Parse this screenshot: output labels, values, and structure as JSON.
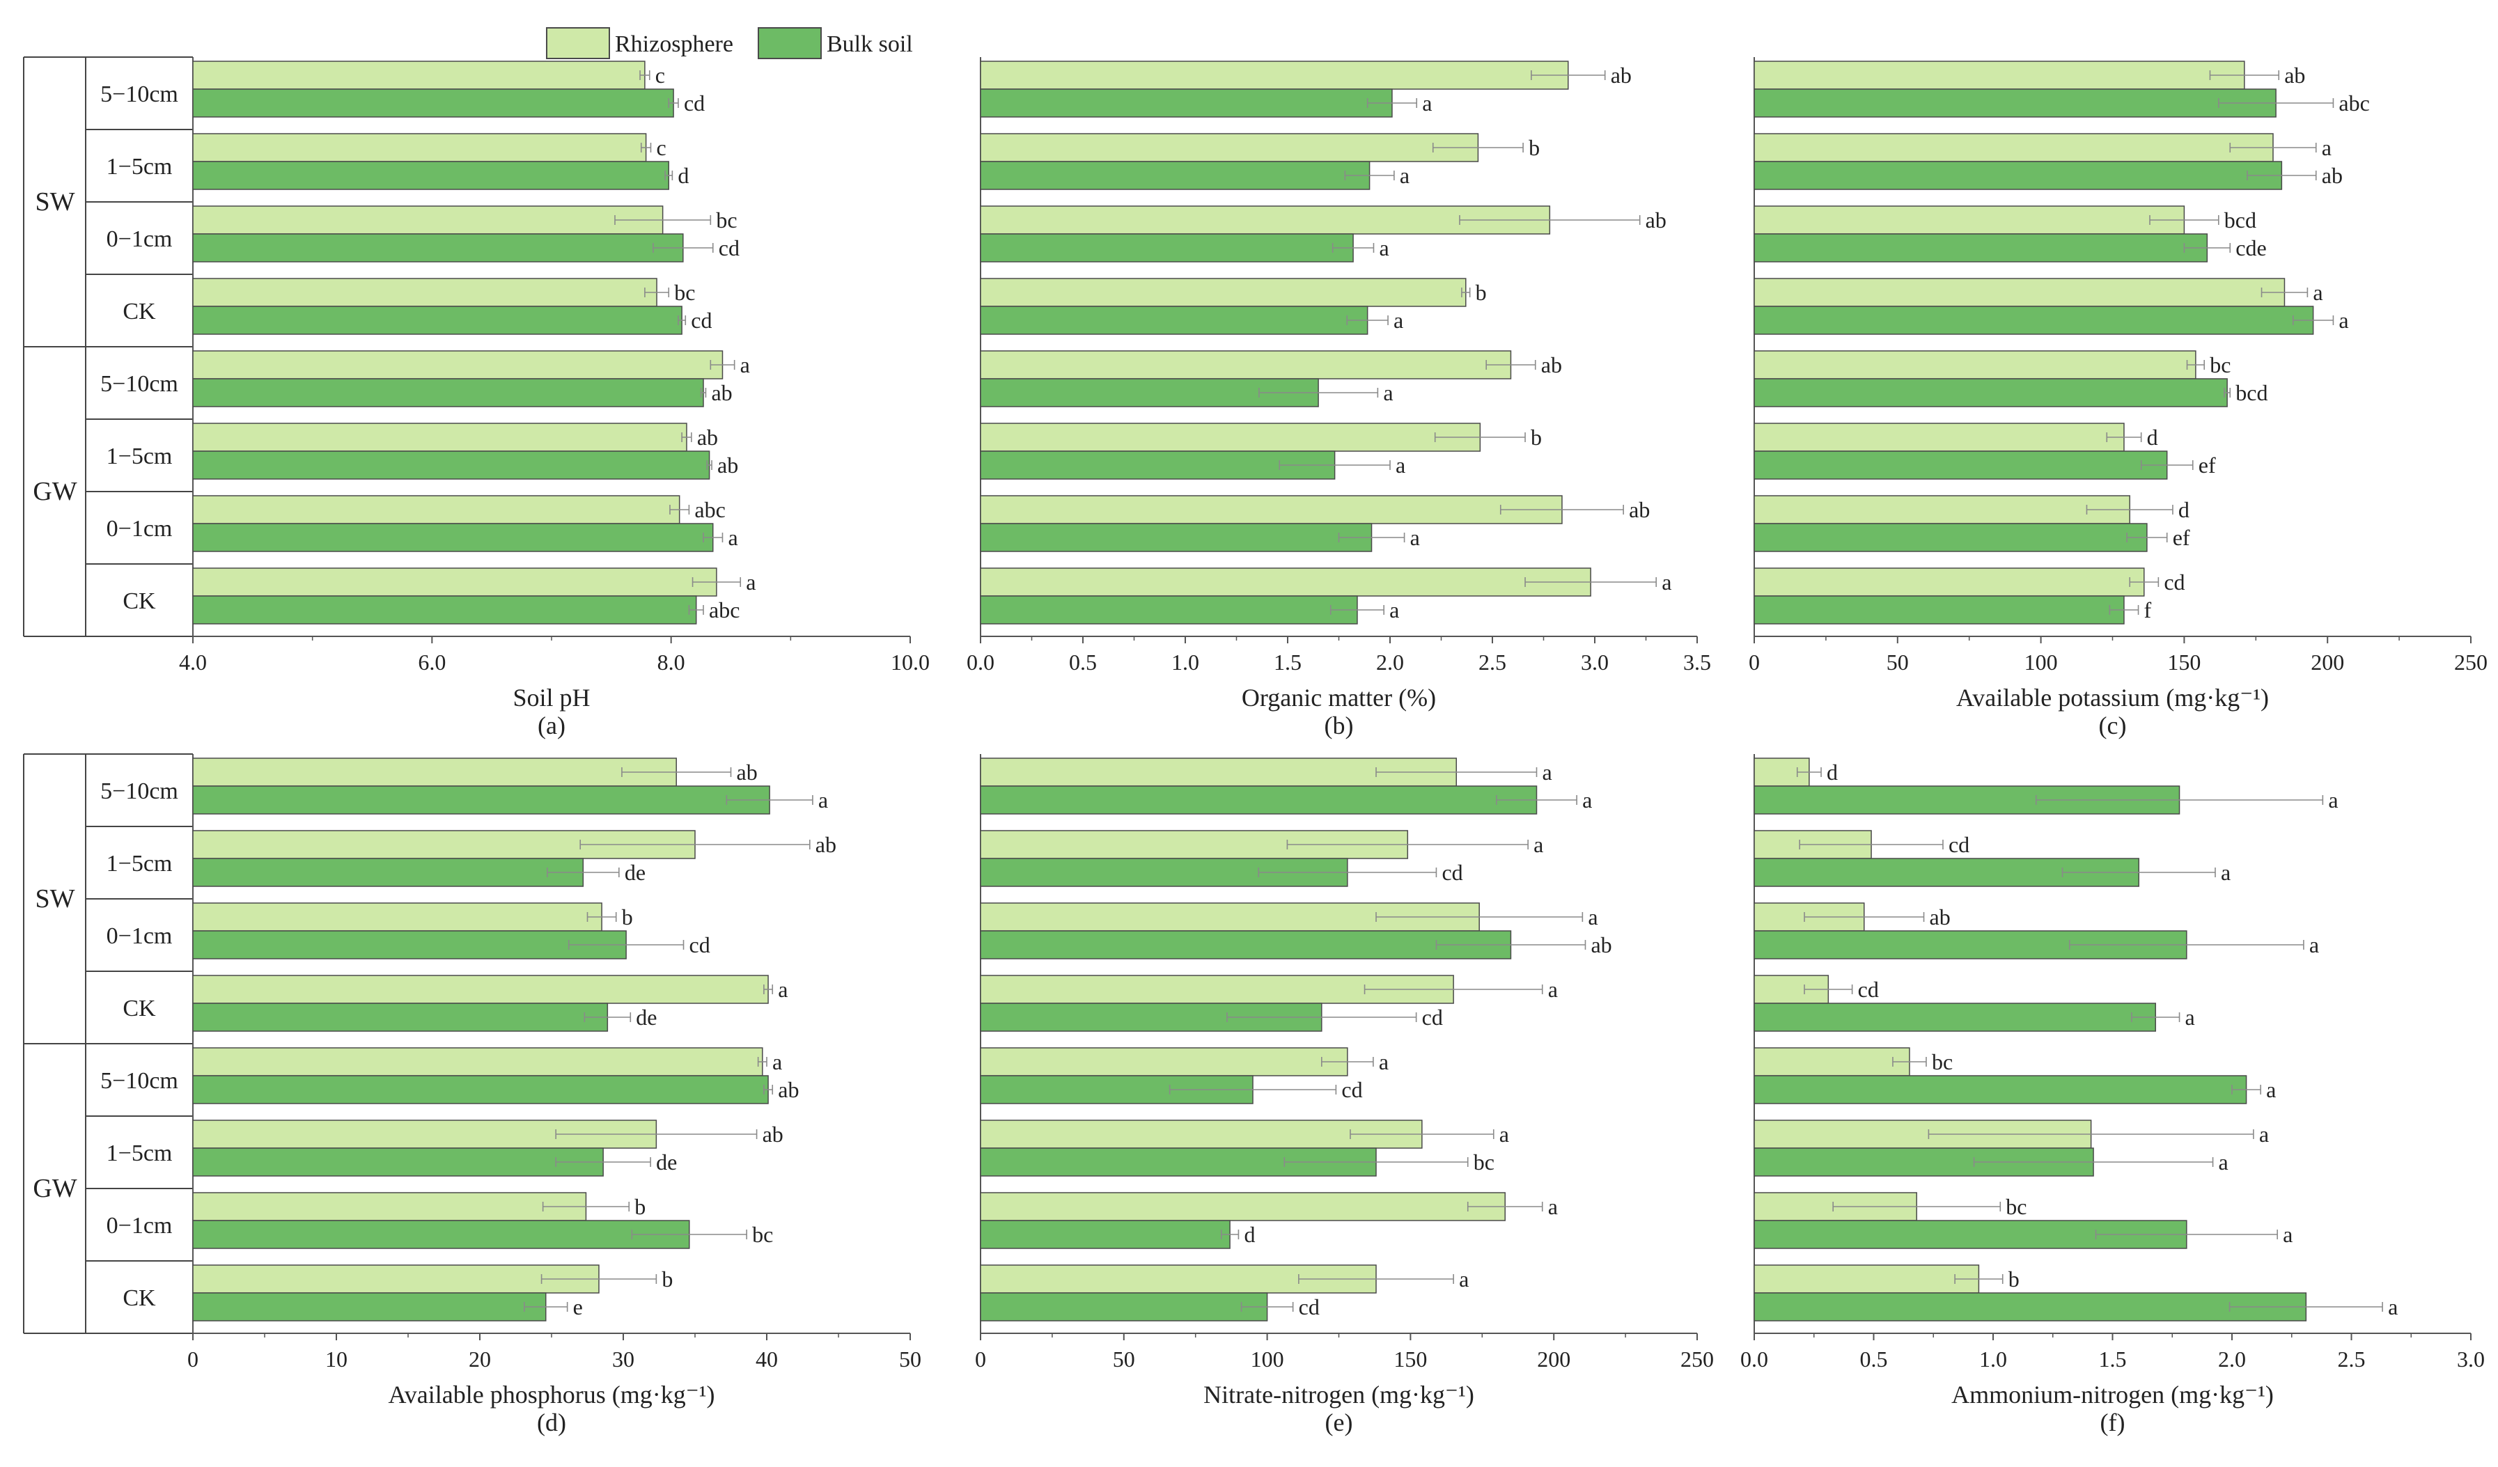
{
  "legend": {
    "rhizosphere": "Rhizosphere",
    "bulk": "Bulk soil"
  },
  "groups": [
    {
      "label": "SW",
      "depths": [
        "5−10cm",
        "1−5cm",
        "0−1cm",
        "CK"
      ]
    },
    {
      "label": "GW",
      "depths": [
        "5−10cm",
        "1−5cm",
        "0−1cm",
        "CK"
      ]
    }
  ],
  "colors": {
    "rhizosphere": "#cfe9a8",
    "bulk": "#6dbb65",
    "bar_edge": "#4a4a4a",
    "axis": "#555555",
    "error": "#8a8a8a"
  },
  "chart_data": [
    {
      "panel": "(a)",
      "type": "bar",
      "orientation": "horizontal",
      "xlabel": "Soil pH",
      "xlim": [
        4,
        10
      ],
      "ticks": [
        4,
        6,
        8,
        10
      ],
      "tick_labels": [
        "4.0",
        "6.0",
        "8.0",
        "10.0"
      ],
      "series": [
        {
          "name": "Rhizosphere",
          "values": [
            7.78,
            7.79,
            7.93,
            7.88,
            8.43,
            8.13,
            8.07,
            8.38
          ],
          "errors": [
            0.04,
            0.04,
            0.4,
            0.1,
            0.1,
            0.04,
            0.08,
            0.2
          ],
          "letters": [
            "c",
            "c",
            "bc",
            "bc",
            "a",
            "ab",
            "abc",
            "a"
          ]
        },
        {
          "name": "Bulk soil",
          "values": [
            8.02,
            7.98,
            8.1,
            8.09,
            8.27,
            8.32,
            8.35,
            8.21
          ],
          "errors": [
            0.04,
            0.03,
            0.25,
            0.03,
            0.02,
            0.02,
            0.08,
            0.06
          ],
          "letters": [
            "cd",
            "d",
            "cd",
            "cd",
            "ab",
            "ab",
            "a",
            "abc"
          ]
        }
      ]
    },
    {
      "panel": "(b)",
      "type": "bar",
      "orientation": "horizontal",
      "xlabel": "Organic matter (%)",
      "xlim": [
        0,
        3.5
      ],
      "ticks": [
        0,
        0.5,
        1,
        1.5,
        2,
        2.5,
        3,
        3.5
      ],
      "tick_labels": [
        "0.0",
        "0.5",
        "1.0",
        "1.5",
        "2.0",
        "2.5",
        "3.0",
        "3.5"
      ],
      "series": [
        {
          "name": "Rhizosphere",
          "values": [
            2.87,
            2.43,
            2.78,
            2.37,
            2.59,
            2.44,
            2.84,
            2.98
          ],
          "errors": [
            0.18,
            0.22,
            0.44,
            0.02,
            0.12,
            0.22,
            0.3,
            0.32
          ],
          "letters": [
            "ab",
            "b",
            "ab",
            "b",
            "ab",
            "b",
            "ab",
            "a"
          ]
        },
        {
          "name": "Bulk soil",
          "values": [
            2.01,
            1.9,
            1.82,
            1.89,
            1.65,
            1.73,
            1.91,
            1.84
          ],
          "errors": [
            0.12,
            0.12,
            0.1,
            0.1,
            0.29,
            0.27,
            0.16,
            0.13
          ],
          "letters": [
            "a",
            "a",
            "a",
            "a",
            "a",
            "a",
            "a",
            "a"
          ]
        }
      ]
    },
    {
      "panel": "(c)",
      "type": "bar",
      "orientation": "horizontal",
      "xlabel": "Available potassium (mg·kg⁻¹)",
      "xlim": [
        0,
        250
      ],
      "ticks": [
        0,
        50,
        100,
        150,
        200,
        250
      ],
      "tick_labels": [
        "0",
        "50",
        "100",
        "150",
        "200",
        "250"
      ],
      "series": [
        {
          "name": "Rhizosphere",
          "values": [
            171,
            181,
            150,
            185,
            154,
            129,
            131,
            136
          ],
          "errors": [
            12,
            15,
            12,
            8,
            3,
            6,
            15,
            5
          ],
          "letters": [
            "ab",
            "a",
            "bcd",
            "a",
            "bc",
            "d",
            "d",
            "cd"
          ]
        },
        {
          "name": "Bulk soil",
          "values": [
            182,
            184,
            158,
            195,
            165,
            144,
            137,
            129
          ],
          "errors": [
            20,
            12,
            8,
            7,
            1,
            9,
            7,
            5
          ],
          "letters": [
            "abc",
            "ab",
            "cde",
            "a",
            "bcd",
            "ef",
            "ef",
            "f"
          ]
        }
      ]
    },
    {
      "panel": "(d)",
      "type": "bar",
      "orientation": "horizontal",
      "xlabel": "Available phosphorus (mg·kg⁻¹)",
      "xlim": [
        0,
        50
      ],
      "ticks": [
        0,
        10,
        20,
        30,
        40,
        50
      ],
      "tick_labels": [
        "0",
        "10",
        "20",
        "30",
        "40",
        "50"
      ],
      "series": [
        {
          "name": "Rhizosphere",
          "values": [
            33.7,
            35,
            28.5,
            40.1,
            39.7,
            32.3,
            27.4,
            28.3
          ],
          "errors": [
            3.8,
            8,
            1,
            0.3,
            0.3,
            7,
            3,
            4
          ],
          "letters": [
            "ab",
            "ab",
            "b",
            "a",
            "a",
            "ab",
            "b",
            "b"
          ]
        },
        {
          "name": "Bulk soil",
          "values": [
            40.2,
            27.2,
            30.2,
            28.9,
            40.1,
            28.6,
            34.6,
            24.6
          ],
          "errors": [
            3,
            2.5,
            4,
            1.6,
            0.3,
            3.3,
            4,
            1.5
          ],
          "letters": [
            "a",
            "de",
            "cd",
            "de",
            "ab",
            "de",
            "bc",
            "e"
          ]
        }
      ]
    },
    {
      "panel": "(e)",
      "type": "bar",
      "orientation": "horizontal",
      "xlabel": "Nitrate-nitrogen (mg·kg⁻¹)",
      "xlim": [
        0,
        250
      ],
      "ticks": [
        0,
        50,
        100,
        150,
        200,
        250
      ],
      "tick_labels": [
        "0",
        "50",
        "100",
        "150",
        "200",
        "250"
      ],
      "series": [
        {
          "name": "Rhizosphere",
          "values": [
            166,
            149,
            174,
            165,
            128,
            154,
            183,
            138
          ],
          "errors": [
            28,
            42,
            36,
            31,
            9,
            25,
            13,
            27
          ],
          "letters": [
            "a",
            "a",
            "a",
            "a",
            "a",
            "a",
            "a",
            "a"
          ]
        },
        {
          "name": "Bulk soil",
          "values": [
            194,
            128,
            185,
            119,
            95,
            138,
            87,
            100
          ],
          "errors": [
            14,
            31,
            26,
            33,
            29,
            32,
            3,
            9
          ],
          "letters": [
            "a",
            "cd",
            "ab",
            "cd",
            "cd",
            "bc",
            "d",
            "cd"
          ]
        }
      ]
    },
    {
      "panel": "(f)",
      "type": "bar",
      "orientation": "horizontal",
      "xlabel": "Ammonium-nitrogen (mg·kg⁻¹)",
      "xlim": [
        0,
        3
      ],
      "ticks": [
        0,
        0.5,
        1,
        1.5,
        2,
        2.5,
        3
      ],
      "tick_labels": [
        "0.0",
        "0.5",
        "1.0",
        "1.5",
        "2.0",
        "2.5",
        "3.0"
      ],
      "series": [
        {
          "name": "Rhizosphere",
          "values": [
            0.23,
            0.49,
            0.46,
            0.31,
            0.65,
            1.41,
            0.68,
            0.94
          ],
          "errors": [
            0.05,
            0.3,
            0.25,
            0.1,
            0.07,
            0.68,
            0.35,
            0.1
          ],
          "letters": [
            "d",
            "cd",
            "ab",
            "cd",
            "bc",
            "a",
            "bc",
            "b"
          ]
        },
        {
          "name": "Bulk soil",
          "values": [
            1.78,
            1.61,
            1.81,
            1.68,
            2.06,
            1.42,
            1.81,
            2.31
          ],
          "errors": [
            0.6,
            0.32,
            0.49,
            0.1,
            0.06,
            0.5,
            0.38,
            0.32
          ],
          "letters": [
            "a",
            "a",
            "a",
            "a",
            "a",
            "a",
            "a",
            "a"
          ]
        }
      ]
    }
  ]
}
